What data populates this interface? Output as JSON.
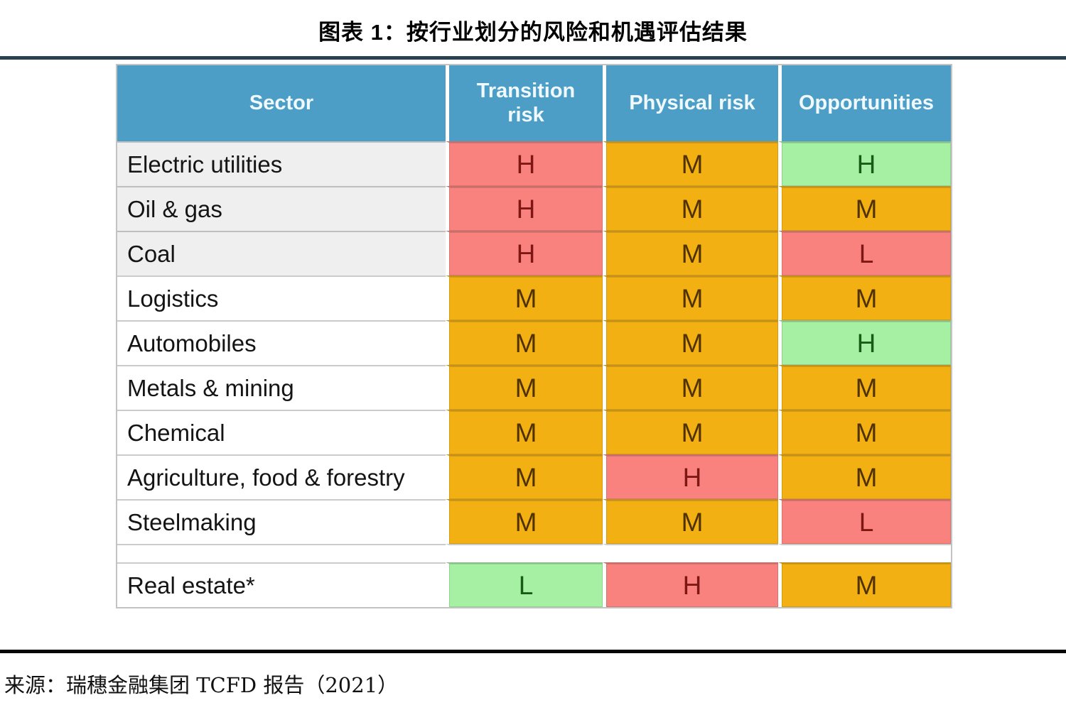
{
  "page": {
    "title": "图表 1：按行业划分的风险和机遇评估结果",
    "source": "来源：瑞穗金融集团 TCFD 报告（2021）"
  },
  "table": {
    "headers": [
      {
        "label": "Sector"
      },
      {
        "label": "Transition risk"
      },
      {
        "label": "Physical risk"
      },
      {
        "label": "Opportunities"
      }
    ],
    "rows": [
      {
        "sector": "Electric utilities",
        "shade": true,
        "ratings": [
          {
            "value": "H",
            "tone": "red"
          },
          {
            "value": "M",
            "tone": "amber"
          },
          {
            "value": "H",
            "tone": "green"
          }
        ]
      },
      {
        "sector": "Oil & gas",
        "shade": true,
        "ratings": [
          {
            "value": "H",
            "tone": "red"
          },
          {
            "value": "M",
            "tone": "amber"
          },
          {
            "value": "M",
            "tone": "amber"
          }
        ]
      },
      {
        "sector": "Coal",
        "shade": true,
        "ratings": [
          {
            "value": "H",
            "tone": "red"
          },
          {
            "value": "M",
            "tone": "amber"
          },
          {
            "value": "L",
            "tone": "red"
          }
        ]
      },
      {
        "sector": "Logistics",
        "shade": false,
        "ratings": [
          {
            "value": "M",
            "tone": "amber"
          },
          {
            "value": "M",
            "tone": "amber"
          },
          {
            "value": "M",
            "tone": "amber"
          }
        ]
      },
      {
        "sector": "Automobiles",
        "shade": false,
        "ratings": [
          {
            "value": "M",
            "tone": "amber"
          },
          {
            "value": "M",
            "tone": "amber"
          },
          {
            "value": "H",
            "tone": "green"
          }
        ]
      },
      {
        "sector": "Metals & mining",
        "shade": false,
        "ratings": [
          {
            "value": "M",
            "tone": "amber"
          },
          {
            "value": "M",
            "tone": "amber"
          },
          {
            "value": "M",
            "tone": "amber"
          }
        ]
      },
      {
        "sector": "Chemical",
        "shade": false,
        "ratings": [
          {
            "value": "M",
            "tone": "amber"
          },
          {
            "value": "M",
            "tone": "amber"
          },
          {
            "value": "M",
            "tone": "amber"
          }
        ]
      },
      {
        "sector": "Agriculture, food & forestry",
        "shade": false,
        "ratings": [
          {
            "value": "M",
            "tone": "amber"
          },
          {
            "value": "H",
            "tone": "red"
          },
          {
            "value": "M",
            "tone": "amber"
          }
        ]
      },
      {
        "sector": "Steelmaking",
        "shade": false,
        "ratings": [
          {
            "value": "M",
            "tone": "amber"
          },
          {
            "value": "M",
            "tone": "amber"
          },
          {
            "value": "L",
            "tone": "red"
          }
        ]
      },
      {
        "spacer": true
      },
      {
        "sector": "Real estate*",
        "shade": false,
        "ratings": [
          {
            "value": "L",
            "tone": "green"
          },
          {
            "value": "H",
            "tone": "red"
          },
          {
            "value": "M",
            "tone": "amber"
          }
        ]
      }
    ]
  },
  "chart_data": {
    "type": "table",
    "title": "图表 1：按行业划分的风险和机遇评估结果",
    "columns": [
      "Sector",
      "Transition risk",
      "Physical risk",
      "Opportunities"
    ],
    "cells": [
      [
        "Electric utilities",
        "H",
        "M",
        "H"
      ],
      [
        "Oil & gas",
        "H",
        "M",
        "M"
      ],
      [
        "Coal",
        "H",
        "M",
        "L"
      ],
      [
        "Logistics",
        "M",
        "M",
        "M"
      ],
      [
        "Automobiles",
        "M",
        "M",
        "H"
      ],
      [
        "Metals & mining",
        "M",
        "M",
        "M"
      ],
      [
        "Chemical",
        "M",
        "M",
        "M"
      ],
      [
        "Agriculture, food & forestry",
        "M",
        "H",
        "M"
      ],
      [
        "Steelmaking",
        "M",
        "M",
        "L"
      ],
      [
        "Real estate*",
        "L",
        "H",
        "M"
      ]
    ]
  },
  "colors": {
    "header_bg": "#4d9ec7",
    "header_text": "#eff9ff",
    "red": "#f9827e",
    "red_text": "#7d1714",
    "amber": "#f3b013",
    "amber_text": "#4f3200",
    "green": "#a6f0a4",
    "green_text": "#175b17",
    "sector_shade": "#efefef",
    "divider": "#2a4250"
  }
}
